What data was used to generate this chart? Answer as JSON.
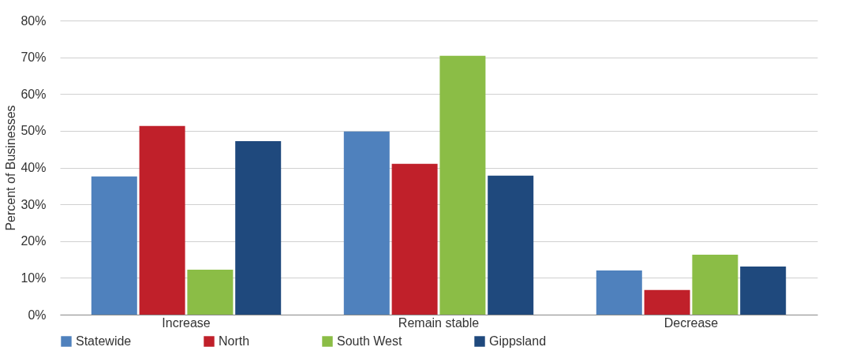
{
  "chart_data": {
    "type": "bar",
    "ylabel": "Percent of Businesses",
    "categories": [
      "Increase",
      "Remain stable",
      "Decrease"
    ],
    "series": [
      {
        "name": "Statewide",
        "color": "#4f81bd",
        "values": [
          37.6,
          49.8,
          12.0
        ]
      },
      {
        "name": "North",
        "color": "#c0202a",
        "values": [
          51.3,
          41.0,
          6.7
        ]
      },
      {
        "name": "South West",
        "color": "#8bbd46",
        "values": [
          12.2,
          70.4,
          16.3
        ]
      },
      {
        "name": "Gippsland",
        "color": "#1f497d",
        "values": [
          47.2,
          37.8,
          13.1
        ]
      }
    ],
    "ylim": [
      0,
      80
    ],
    "yticks": [
      {
        "value": 0,
        "label": "0%"
      },
      {
        "value": 10,
        "label": "10%"
      },
      {
        "value": 20,
        "label": "20%"
      },
      {
        "value": 30,
        "label": "30%"
      },
      {
        "value": 40,
        "label": "40%"
      },
      {
        "value": 50,
        "label": "50%"
      },
      {
        "value": 60,
        "label": "60%"
      },
      {
        "value": 70,
        "label": "70%"
      },
      {
        "value": 80,
        "label": "80%"
      }
    ],
    "grid": "y",
    "legend": "bottom"
  }
}
